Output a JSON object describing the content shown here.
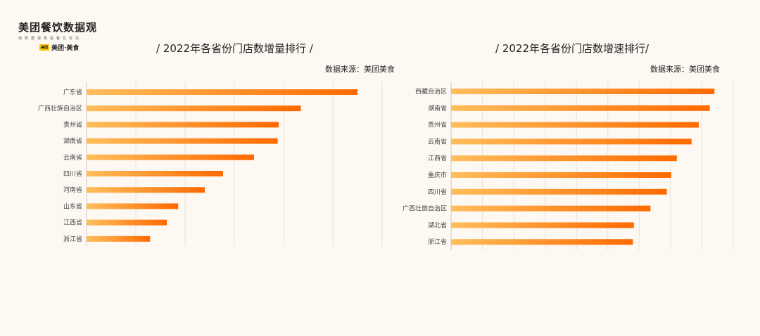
{
  "brand": {
    "title": "美团餐饮数据观",
    "subtitle": "用数据视角看餐饮百态",
    "logo_badge": "美团",
    "logo_text": "美团·美食"
  },
  "colors": {
    "bar_start": "#ffbe5c",
    "bar_end": "#ff6a00",
    "grid": "#e6e2dc",
    "background": "#fdf8f2"
  },
  "chart_data": [
    {
      "type": "bar",
      "orientation": "horizontal",
      "title": "/ 2022年各省份门店数增量排行 /",
      "source": "数据来源：美团美食",
      "categories": [
        "广东省",
        "广西壮族自治区",
        "贵州省",
        "湖南省",
        "云南省",
        "四川省",
        "河南省",
        "山东省",
        "江西省",
        "浙江省"
      ],
      "values": [
        5.5,
        4.35,
        3.9,
        3.88,
        3.4,
        2.77,
        2.4,
        1.86,
        1.63,
        1.29
      ],
      "xlim": [
        0,
        6
      ],
      "grid": true
    },
    {
      "type": "bar",
      "orientation": "horizontal",
      "title": "/ 2022年各省份门店数增速排行/",
      "source": "数据来源：美团美食",
      "categories": [
        "西藏自治区",
        "湖南省",
        "贵州省",
        "云南省",
        "江西省",
        "重庆市",
        "四川省",
        "广西壮族自治区",
        "湖北省",
        "浙江省"
      ],
      "values": [
        8.4,
        8.25,
        7.9,
        7.67,
        7.2,
        7.02,
        6.88,
        6.36,
        5.83,
        5.8
      ],
      "xlim": [
        0,
        9
      ],
      "grid": true
    }
  ]
}
